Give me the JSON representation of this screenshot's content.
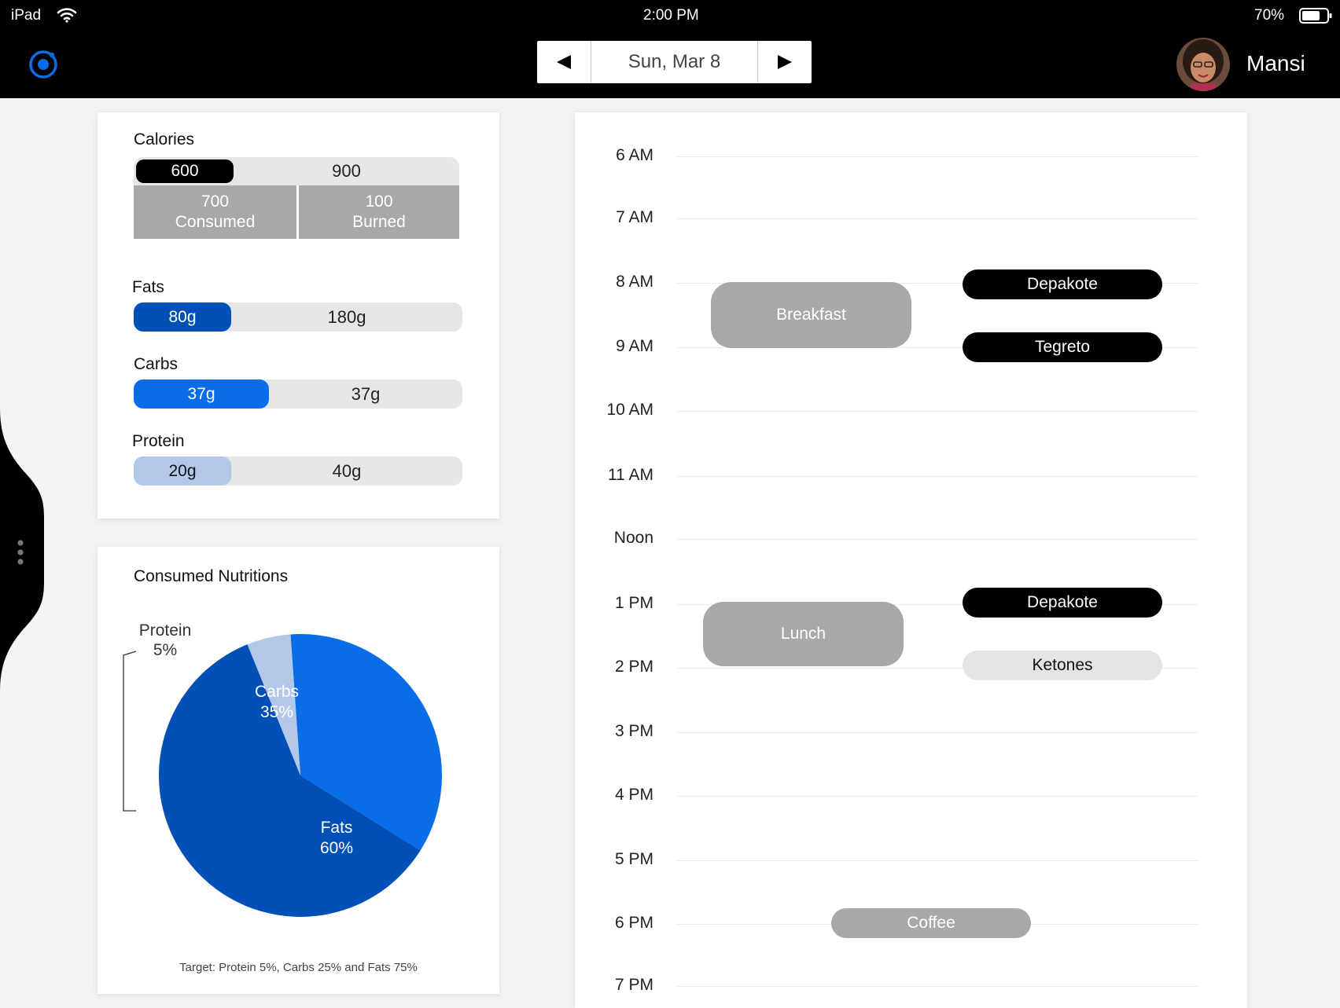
{
  "status_bar": {
    "device": "iPad",
    "time": "2:00 PM",
    "battery": "70%"
  },
  "nav": {
    "date": "Sun, Mar 8",
    "prev_icon": "triangle-left-icon",
    "next_icon": "triangle-right-icon",
    "user_name": "Mansi"
  },
  "colors": {
    "fats": "#0050b8",
    "carbs": "#0a6de8",
    "protein": "#b3c8e8",
    "meal": "#a8a8a8",
    "medication": "#000000",
    "test": "#e4e4e4"
  },
  "calories": {
    "title": "Calories",
    "target_label": "600",
    "total_label": "900",
    "consumed_value": "700",
    "consumed_label": "Consumed",
    "burned_value": "100",
    "burned_label": "Burned"
  },
  "macros": [
    {
      "name": "Fats",
      "consumed": "80g",
      "remaining": "180g",
      "fraction": 0.3
    },
    {
      "name": "Carbs",
      "consumed": "37g",
      "remaining": "37g",
      "fraction": 0.41
    },
    {
      "name": "Protein",
      "consumed": "20g",
      "remaining": "40g",
      "fraction": 0.3
    }
  ],
  "nutrition": {
    "title": "Consumed Nutritions",
    "target_note": "Target: Protein 5%, Carbs 25% and Fats 75%"
  },
  "chart_data": {
    "type": "pie",
    "title": "Consumed Nutritions",
    "slices": [
      {
        "label": "Carbs",
        "value": 35,
        "display": "35%"
      },
      {
        "label": "Fats",
        "value": 60,
        "display": "60%"
      },
      {
        "label": "Protein",
        "value": 5,
        "display": "5%"
      }
    ]
  },
  "schedule": {
    "times": [
      "6 AM",
      "7 AM",
      "8 AM",
      "9 AM",
      "10 AM",
      "11 AM",
      "Noon",
      "1 PM",
      "2 PM",
      "3 PM",
      "4 PM",
      "5 PM",
      "6 PM",
      "7 PM"
    ],
    "events": [
      {
        "label": "Breakfast",
        "kind": "meal"
      },
      {
        "label": "Depakote",
        "kind": "medication"
      },
      {
        "label": "Tegreto",
        "kind": "medication"
      },
      {
        "label": "Lunch",
        "kind": "meal"
      },
      {
        "label": "Depakote",
        "kind": "medication"
      },
      {
        "label": "Ketones",
        "kind": "test"
      },
      {
        "label": "Coffee",
        "kind": "meal"
      }
    ]
  }
}
